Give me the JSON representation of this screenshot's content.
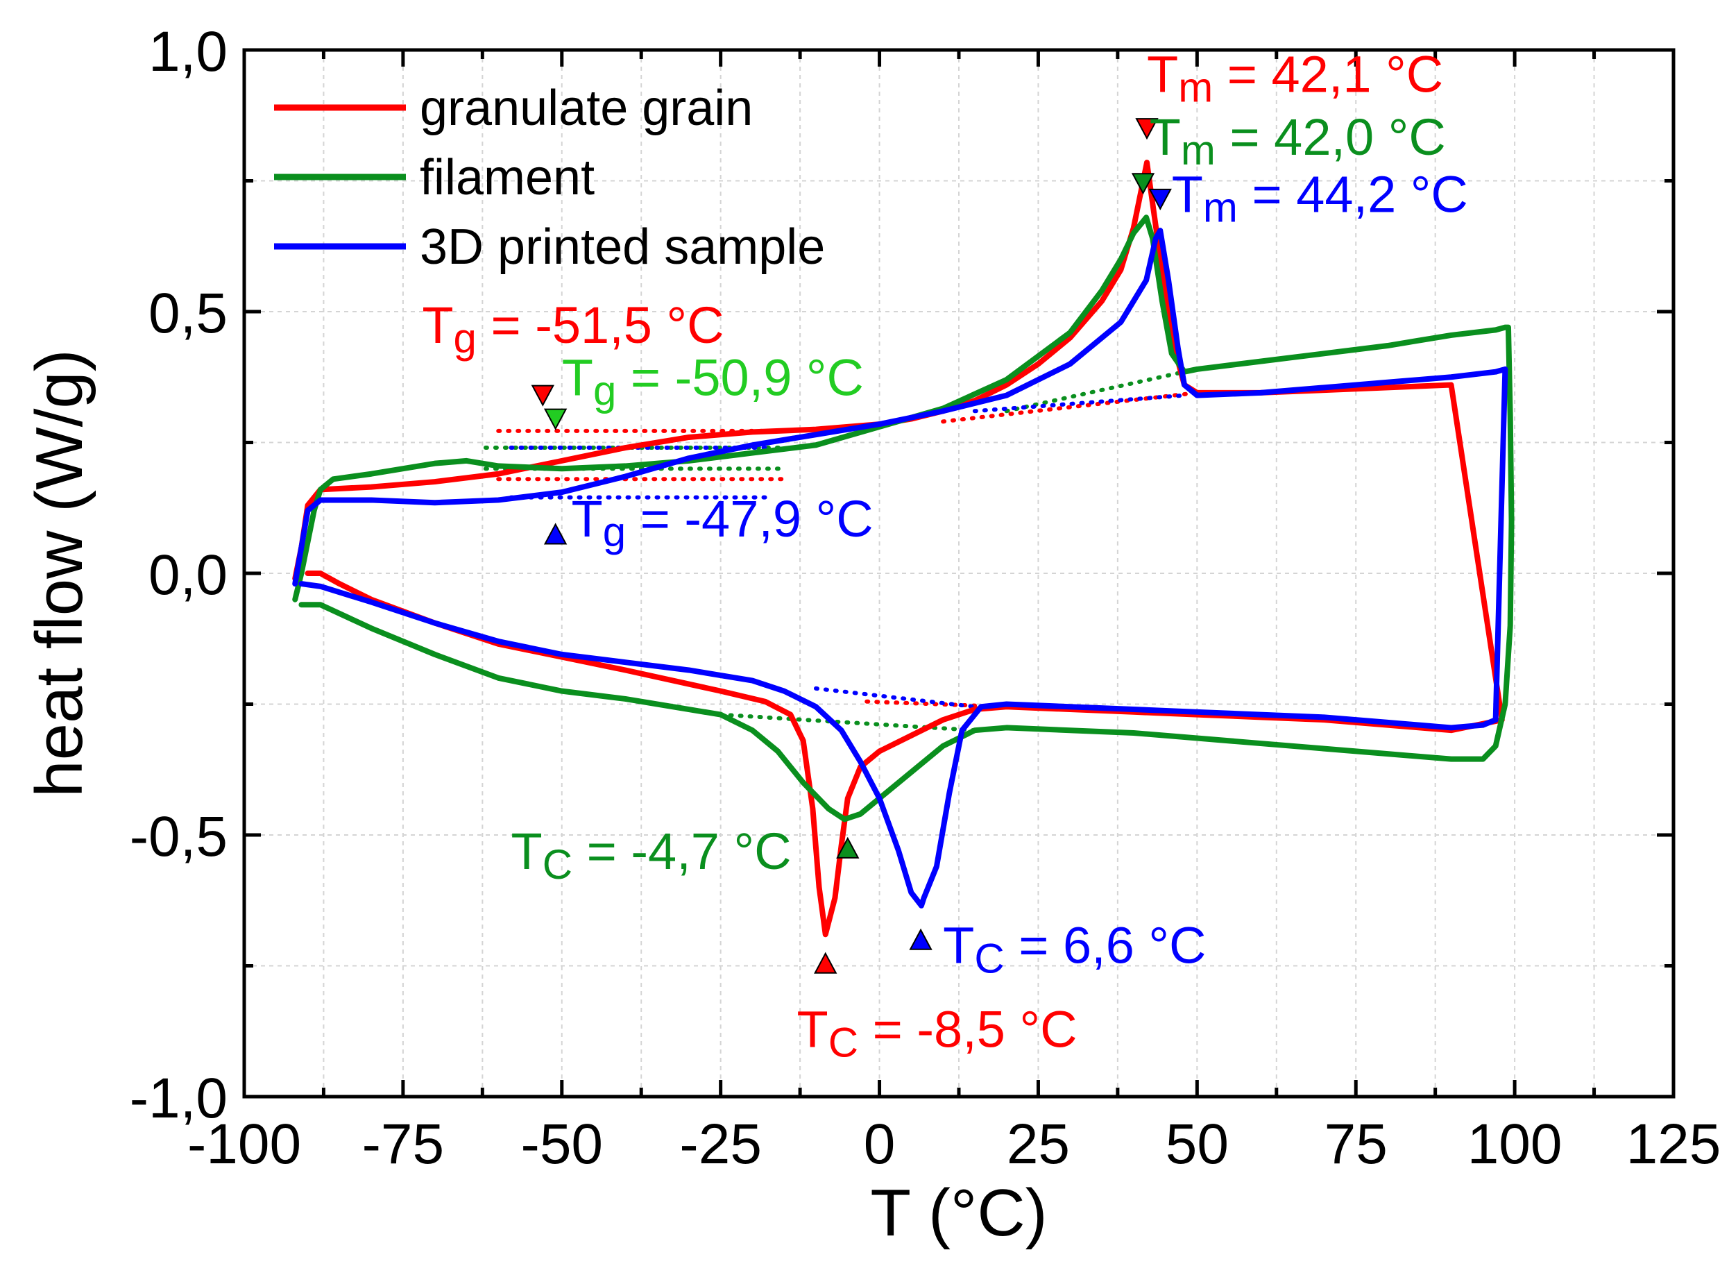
{
  "chart_data": {
    "type": "line",
    "xlabel": "T (°C)",
    "ylabel": "heat flow (W/g)",
    "xlim": [
      -100,
      125
    ],
    "ylim": [
      -1.0,
      1.0
    ],
    "x_ticks": [
      -100,
      -75,
      -50,
      -25,
      0,
      25,
      50,
      75,
      100,
      125
    ],
    "x_tick_labels": [
      "-100",
      "-75",
      "-50",
      "-25",
      "0",
      "25",
      "50",
      "75",
      "100",
      "125"
    ],
    "y_ticks": [
      -1.0,
      -0.5,
      0.0,
      0.5,
      1.0
    ],
    "y_tick_labels": [
      "-1,0",
      "-0,5",
      "0,0",
      "0,5",
      "1,0"
    ],
    "grid": true,
    "legend_position": "top-left",
    "series": [
      {
        "name": "granulate grain",
        "color": "#ff0000",
        "heating": [
          [
            -92,
            -0.01
          ],
          [
            -91,
            0.05
          ],
          [
            -90,
            0.13
          ],
          [
            -88,
            0.16
          ],
          [
            -80,
            0.165
          ],
          [
            -70,
            0.175
          ],
          [
            -60,
            0.19
          ],
          [
            -50,
            0.215
          ],
          [
            -40,
            0.24
          ],
          [
            -30,
            0.26
          ],
          [
            -20,
            0.27
          ],
          [
            -10,
            0.275
          ],
          [
            -5,
            0.28
          ],
          [
            0,
            0.285
          ],
          [
            5,
            0.295
          ],
          [
            10,
            0.31
          ],
          [
            15,
            0.33
          ],
          [
            20,
            0.36
          ],
          [
            25,
            0.4
          ],
          [
            30,
            0.45
          ],
          [
            35,
            0.52
          ],
          [
            38,
            0.58
          ],
          [
            40,
            0.66
          ],
          [
            42.1,
            0.785
          ],
          [
            44,
            0.62
          ],
          [
            46,
            0.45
          ],
          [
            48,
            0.36
          ],
          [
            50,
            0.345
          ],
          [
            60,
            0.345
          ],
          [
            70,
            0.35
          ],
          [
            80,
            0.355
          ],
          [
            90,
            0.36
          ]
        ],
        "cooling": [
          [
            98,
            -0.28
          ],
          [
            90,
            -0.3
          ],
          [
            80,
            -0.29
          ],
          [
            70,
            -0.28
          ],
          [
            60,
            -0.275
          ],
          [
            50,
            -0.27
          ],
          [
            40,
            -0.265
          ],
          [
            30,
            -0.26
          ],
          [
            20,
            -0.255
          ],
          [
            15,
            -0.26
          ],
          [
            10,
            -0.28
          ],
          [
            5,
            -0.31
          ],
          [
            0,
            -0.34
          ],
          [
            -3,
            -0.37
          ],
          [
            -5,
            -0.43
          ],
          [
            -6,
            -0.52
          ],
          [
            -7,
            -0.62
          ],
          [
            -8.5,
            -0.69
          ],
          [
            -9.5,
            -0.6
          ],
          [
            -10.5,
            -0.45
          ],
          [
            -12,
            -0.32
          ],
          [
            -14,
            -0.27
          ],
          [
            -18,
            -0.245
          ],
          [
            -25,
            -0.225
          ],
          [
            -40,
            -0.185
          ],
          [
            -50,
            -0.16
          ],
          [
            -60,
            -0.135
          ],
          [
            -70,
            -0.095
          ],
          [
            -80,
            -0.05
          ],
          [
            -85,
            -0.02
          ],
          [
            -88,
            0.0
          ],
          [
            -90,
            0.0
          ]
        ]
      },
      {
        "name": "filament",
        "color": "#0a8f1e",
        "heating": [
          [
            -92,
            -0.05
          ],
          [
            -91,
            0.0
          ],
          [
            -90,
            0.06
          ],
          [
            -89,
            0.12
          ],
          [
            -88,
            0.16
          ],
          [
            -86,
            0.18
          ],
          [
            -80,
            0.19
          ],
          [
            -70,
            0.21
          ],
          [
            -65,
            0.215
          ],
          [
            -60,
            0.205
          ],
          [
            -50,
            0.2
          ],
          [
            -40,
            0.205
          ],
          [
            -30,
            0.215
          ],
          [
            -20,
            0.23
          ],
          [
            -10,
            0.245
          ],
          [
            0,
            0.28
          ],
          [
            10,
            0.315
          ],
          [
            20,
            0.37
          ],
          [
            30,
            0.46
          ],
          [
            35,
            0.54
          ],
          [
            38,
            0.6
          ],
          [
            40,
            0.65
          ],
          [
            42,
            0.68
          ],
          [
            43,
            0.64
          ],
          [
            44.5,
            0.52
          ],
          [
            46,
            0.42
          ],
          [
            48,
            0.385
          ],
          [
            50,
            0.39
          ],
          [
            60,
            0.405
          ],
          [
            70,
            0.42
          ],
          [
            80,
            0.435
          ],
          [
            90,
            0.455
          ],
          [
            97,
            0.465
          ],
          [
            98.5,
            0.47
          ]
        ],
        "cooling": [
          [
            99,
            0.47
          ],
          [
            99.3,
            0.3
          ],
          [
            99.5,
            0.1
          ],
          [
            99.3,
            -0.1
          ],
          [
            98.5,
            -0.25
          ],
          [
            97,
            -0.33
          ],
          [
            95,
            -0.355
          ],
          [
            90,
            -0.355
          ],
          [
            80,
            -0.345
          ],
          [
            70,
            -0.335
          ],
          [
            60,
            -0.325
          ],
          [
            50,
            -0.315
          ],
          [
            40,
            -0.305
          ],
          [
            30,
            -0.3
          ],
          [
            20,
            -0.295
          ],
          [
            15,
            -0.3
          ],
          [
            10,
            -0.33
          ],
          [
            5,
            -0.38
          ],
          [
            0,
            -0.43
          ],
          [
            -3,
            -0.46
          ],
          [
            -5.5,
            -0.47
          ],
          [
            -8,
            -0.45
          ],
          [
            -12,
            -0.4
          ],
          [
            -16,
            -0.34
          ],
          [
            -20,
            -0.3
          ],
          [
            -25,
            -0.27
          ],
          [
            -30,
            -0.26
          ],
          [
            -40,
            -0.24
          ],
          [
            -50,
            -0.225
          ],
          [
            -60,
            -0.2
          ],
          [
            -70,
            -0.155
          ],
          [
            -80,
            -0.105
          ],
          [
            -88,
            -0.06
          ],
          [
            -91,
            -0.06
          ]
        ]
      },
      {
        "name": "3D printed sample",
        "color": "#0000ff",
        "heating": [
          [
            -92,
            -0.02
          ],
          [
            -91,
            0.05
          ],
          [
            -90,
            0.12
          ],
          [
            -88,
            0.14
          ],
          [
            -80,
            0.14
          ],
          [
            -70,
            0.135
          ],
          [
            -60,
            0.14
          ],
          [
            -50,
            0.155
          ],
          [
            -40,
            0.185
          ],
          [
            -30,
            0.22
          ],
          [
            -20,
            0.245
          ],
          [
            -10,
            0.265
          ],
          [
            0,
            0.285
          ],
          [
            10,
            0.31
          ],
          [
            20,
            0.34
          ],
          [
            30,
            0.4
          ],
          [
            38,
            0.48
          ],
          [
            42,
            0.56
          ],
          [
            43.5,
            0.64
          ],
          [
            44.2,
            0.655
          ],
          [
            45.5,
            0.56
          ],
          [
            47,
            0.43
          ],
          [
            48,
            0.36
          ],
          [
            50,
            0.34
          ],
          [
            60,
            0.345
          ],
          [
            70,
            0.355
          ],
          [
            80,
            0.365
          ],
          [
            90,
            0.375
          ],
          [
            97,
            0.385
          ],
          [
            98.5,
            0.39
          ]
        ],
        "cooling": [
          [
            97,
            -0.28
          ],
          [
            95,
            -0.29
          ],
          [
            90,
            -0.295
          ],
          [
            80,
            -0.285
          ],
          [
            70,
            -0.275
          ],
          [
            60,
            -0.27
          ],
          [
            50,
            -0.265
          ],
          [
            40,
            -0.26
          ],
          [
            30,
            -0.255
          ],
          [
            20,
            -0.25
          ],
          [
            16,
            -0.255
          ],
          [
            13,
            -0.3
          ],
          [
            11,
            -0.42
          ],
          [
            9,
            -0.56
          ],
          [
            7,
            -0.62
          ],
          [
            6.6,
            -0.635
          ],
          [
            5,
            -0.61
          ],
          [
            3,
            -0.53
          ],
          [
            0,
            -0.43
          ],
          [
            -3,
            -0.36
          ],
          [
            -6,
            -0.3
          ],
          [
            -10,
            -0.255
          ],
          [
            -15,
            -0.225
          ],
          [
            -20,
            -0.205
          ],
          [
            -30,
            -0.185
          ],
          [
            -40,
            -0.17
          ],
          [
            -50,
            -0.155
          ],
          [
            -60,
            -0.13
          ],
          [
            -70,
            -0.095
          ],
          [
            -80,
            -0.055
          ],
          [
            -88,
            -0.025
          ],
          [
            -91,
            -0.02
          ]
        ]
      }
    ],
    "baselines": [
      {
        "series": "granulate grain",
        "color": "#ff0000",
        "points": [
          [
            -60,
            0.272
          ],
          [
            -15,
            0.272
          ]
        ]
      },
      {
        "series": "granulate grain",
        "color": "#ff0000",
        "points": [
          [
            -60,
            0.18
          ],
          [
            -15,
            0.18
          ]
        ]
      },
      {
        "series": "granulate grain",
        "color": "#ff0000",
        "points": [
          [
            10,
            0.29
          ],
          [
            50,
            0.345
          ]
        ]
      },
      {
        "series": "granulate grain",
        "color": "#ff0000",
        "points": [
          [
            -2,
            -0.245
          ],
          [
            20,
            -0.255
          ]
        ]
      },
      {
        "series": "filament",
        "color": "#0a8f1e",
        "points": [
          [
            -62,
            0.24
          ],
          [
            -15,
            0.24
          ]
        ]
      },
      {
        "series": "filament",
        "color": "#0a8f1e",
        "points": [
          [
            -62,
            0.2
          ],
          [
            -15,
            0.2
          ]
        ]
      },
      {
        "series": "filament",
        "color": "#0a8f1e",
        "points": [
          [
            20,
            0.31
          ],
          [
            48,
            0.385
          ]
        ]
      },
      {
        "series": "filament",
        "color": "#0a8f1e",
        "points": [
          [
            -25,
            -0.27
          ],
          [
            15,
            -0.3
          ]
        ]
      },
      {
        "series": "3D printed sample",
        "color": "#0000ff",
        "points": [
          [
            -58,
            0.24
          ],
          [
            -18,
            0.24
          ]
        ]
      },
      {
        "series": "3D printed sample",
        "color": "#0000ff",
        "points": [
          [
            -58,
            0.145
          ],
          [
            -18,
            0.145
          ]
        ]
      },
      {
        "series": "3D printed sample",
        "color": "#0000ff",
        "points": [
          [
            15,
            0.31
          ],
          [
            48,
            0.34
          ]
        ]
      },
      {
        "series": "3D printed sample",
        "color": "#0000ff",
        "points": [
          [
            -10,
            -0.22
          ],
          [
            15,
            -0.255
          ]
        ]
      }
    ],
    "annotations": [
      {
        "symbol": "T",
        "sub": "m",
        "value": " = 42,1 °C",
        "color": "#ff0000",
        "x": 42.1,
        "y": 0.92,
        "marker": {
          "x": 42.1,
          "y": 0.85,
          "dir": "down"
        }
      },
      {
        "symbol": "T",
        "sub": "m",
        "value": " = 42,0 °C",
        "color": "#0a8f1e",
        "x": 42.5,
        "y": 0.8,
        "marker": {
          "x": 41.5,
          "y": 0.745,
          "dir": "down"
        }
      },
      {
        "symbol": "T",
        "sub": "m",
        "value": " = 44,2 °C",
        "color": "#0000ff",
        "x": 46,
        "y": 0.69,
        "marker": {
          "x": 44.2,
          "y": 0.715,
          "dir": "down"
        }
      },
      {
        "symbol": "T",
        "sub": "g",
        "value": " = -51,5 °C",
        "color": "#ff0000",
        "x": -72,
        "y": 0.44,
        "marker": {
          "x": -53,
          "y": 0.34,
          "dir": "down"
        }
      },
      {
        "symbol": "T",
        "sub": "g",
        "value": " = -50,9 °C",
        "color": "#22cc22",
        "x": -50,
        "y": 0.34,
        "marker": {
          "x": -51,
          "y": 0.295,
          "dir": "down"
        }
      },
      {
        "symbol": "T",
        "sub": "g",
        "value": " = -47,9 °C",
        "color": "#0000ff",
        "x": -48.5,
        "y": 0.07,
        "marker": {
          "x": -51,
          "y": 0.075,
          "dir": "up"
        }
      },
      {
        "symbol": "T",
        "sub": "C",
        "value": " = -4,7 °C",
        "color": "#0a8f1e",
        "x": -58,
        "y": -0.565,
        "marker": {
          "x": -5,
          "y": -0.525,
          "dir": "up"
        }
      },
      {
        "symbol": "T",
        "sub": "C",
        "value": " = 6,6 °C",
        "color": "#0000ff",
        "x": 10,
        "y": -0.745,
        "marker": {
          "x": 6.5,
          "y": -0.7,
          "dir": "up"
        }
      },
      {
        "symbol": "T",
        "sub": "C",
        "value": " = -8,5 °C",
        "color": "#ff0000",
        "x": -13,
        "y": -0.905,
        "marker": {
          "x": -8.5,
          "y": -0.745,
          "dir": "up"
        }
      }
    ]
  }
}
